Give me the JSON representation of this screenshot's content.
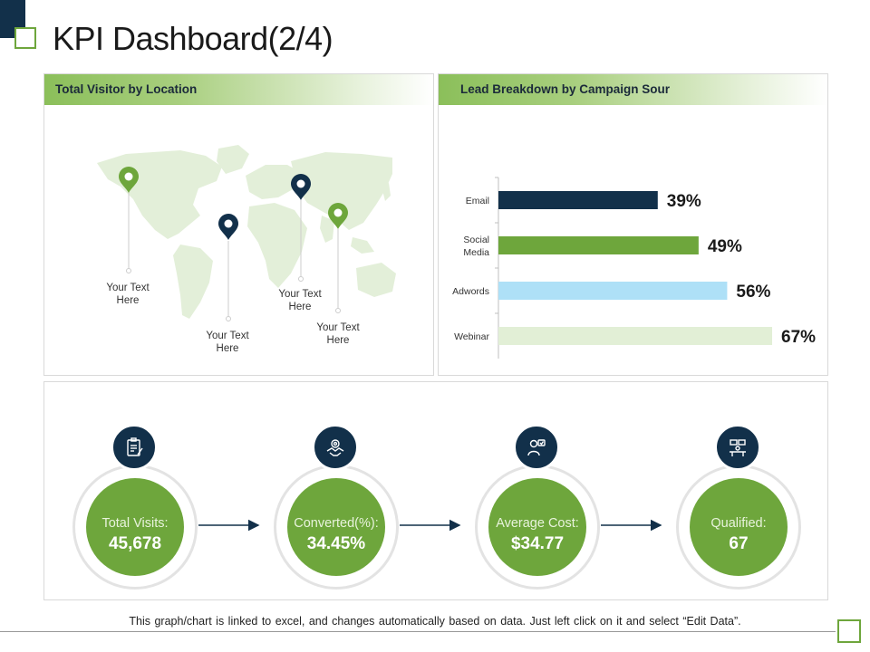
{
  "page": {
    "title": "KPI Dashboard(2/4)",
    "footer_note": "This graph/chart is linked to excel, and changes automatically based on data. Just left click on it and select “Edit Data”."
  },
  "map_panel": {
    "title": "Total Visitor by Location",
    "pins": [
      {
        "label_line1": "Your Text",
        "label_line2": "Here",
        "color": "#6ea63c"
      },
      {
        "label_line1": "Your Text",
        "label_line2": "Here",
        "color": "#12304a"
      },
      {
        "label_line1": "Your Text",
        "label_line2": "Here",
        "color": "#12304a"
      },
      {
        "label_line1": "Your Text",
        "label_line2": "Here",
        "color": "#6ea63c"
      }
    ]
  },
  "chart_data": {
    "type": "bar",
    "orientation": "horizontal",
    "title": "Lead Breakdown by Campaign Sour",
    "categories": [
      [
        "Email"
      ],
      [
        "Social",
        "Media"
      ],
      [
        "Adwords"
      ],
      [
        "Webinar"
      ]
    ],
    "values": [
      39,
      49,
      56,
      67
    ],
    "value_labels": [
      "39%",
      "49%",
      "56%",
      "67%"
    ],
    "colors": [
      "#12304a",
      "#6ea63c",
      "#aee0f7",
      "#e2efd6"
    ],
    "xlim": [
      0,
      67
    ],
    "unit": "%"
  },
  "kpis": [
    {
      "label": "Total Visits:",
      "value": "45,678",
      "icon": "clipboard-icon"
    },
    {
      "label": "Converted(%):",
      "value": "34.45%",
      "icon": "handshake-gear-icon"
    },
    {
      "label": "Average Cost:",
      "value": "$34.77",
      "icon": "person-screen-icon"
    },
    {
      "label": "Qualified:",
      "value": "67",
      "icon": "workspace-icon"
    }
  ],
  "colors": {
    "navy": "#12304a",
    "green": "#6ea63c",
    "map": "#e3efd9"
  }
}
